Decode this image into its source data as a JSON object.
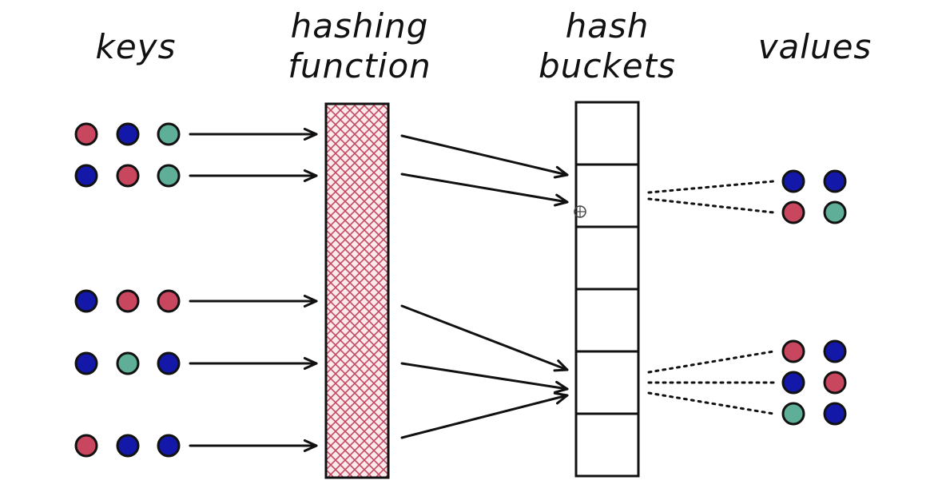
{
  "headings": {
    "keys": "keys",
    "hashing_function": [
      "hashing",
      "function"
    ],
    "hash_buckets": [
      "hash",
      "buckets"
    ],
    "values": "values"
  },
  "colors": {
    "red": "#c8475e",
    "blue": "#1418a8",
    "teal": "#5fae98",
    "hatch": "#c14a60",
    "ink": "#111111"
  },
  "key_rows": [
    [
      "red",
      "blue",
      "teal"
    ],
    [
      "blue",
      "red",
      "teal"
    ],
    [
      "blue",
      "red",
      "red"
    ],
    [
      "blue",
      "teal",
      "blue"
    ],
    [
      "red",
      "blue",
      "blue"
    ]
  ],
  "bucket_count": 6,
  "mapping": [
    1,
    1,
    4,
    4,
    4
  ],
  "value_groups": [
    {
      "bucket": 1,
      "dots": [
        [
          "blue",
          "blue"
        ],
        [
          "red",
          "teal"
        ]
      ]
    },
    {
      "bucket": 4,
      "dots": [
        [
          "red",
          "blue"
        ],
        [
          "blue",
          "red"
        ],
        [
          "teal",
          "blue"
        ]
      ]
    }
  ]
}
